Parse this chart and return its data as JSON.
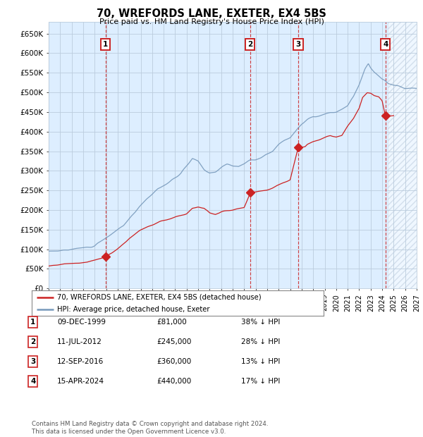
{
  "title": "70, WREFORDS LANE, EXETER, EX4 5BS",
  "subtitle": "Price paid vs. HM Land Registry's House Price Index (HPI)",
  "ylim": [
    0,
    680000
  ],
  "xlim_start": 1995.0,
  "xlim_end": 2027.0,
  "yticks": [
    0,
    50000,
    100000,
    150000,
    200000,
    250000,
    300000,
    350000,
    400000,
    450000,
    500000,
    550000,
    600000,
    650000
  ],
  "ytick_labels": [
    "£0",
    "£50K",
    "£100K",
    "£150K",
    "£200K",
    "£250K",
    "£300K",
    "£350K",
    "£400K",
    "£450K",
    "£500K",
    "£550K",
    "£600K",
    "£650K"
  ],
  "hpi_color": "#7799bb",
  "price_color": "#cc2222",
  "plot_bg_color": "#ddeeff",
  "grid_color": "#bbccdd",
  "sale_dates": [
    1999.94,
    2012.53,
    2016.7,
    2024.29
  ],
  "sale_prices": [
    81000,
    245000,
    360000,
    440000
  ],
  "sale_labels": [
    "1",
    "2",
    "3",
    "4"
  ],
  "sale_info": [
    {
      "num": "1",
      "date": "09-DEC-1999",
      "price": "£81,000",
      "pct": "38% ↓ HPI"
    },
    {
      "num": "2",
      "date": "11-JUL-2012",
      "price": "£245,000",
      "pct": "28% ↓ HPI"
    },
    {
      "num": "3",
      "date": "12-SEP-2016",
      "price": "£360,000",
      "pct": "13% ↓ HPI"
    },
    {
      "num": "4",
      "date": "15-APR-2024",
      "price": "£440,000",
      "pct": "17% ↓ HPI"
    }
  ],
  "legend_entries": [
    "70, WREFORDS LANE, EXETER, EX4 5BS (detached house)",
    "HPI: Average price, detached house, Exeter"
  ],
  "footer": "Contains HM Land Registry data © Crown copyright and database right 2024.\nThis data is licensed under the Open Government Licence v3.0.",
  "hatch_region_start": 2024.5,
  "hatch_region_end": 2027.0,
  "hpi_anchors": [
    [
      1995.0,
      95000
    ],
    [
      1996.0,
      97000
    ],
    [
      1997.0,
      99000
    ],
    [
      1998.0,
      103000
    ],
    [
      1999.0,
      110000
    ],
    [
      1999.94,
      128000
    ],
    [
      2000.5,
      140000
    ],
    [
      2001.5,
      160000
    ],
    [
      2002.5,
      195000
    ],
    [
      2003.5,
      228000
    ],
    [
      2004.5,
      255000
    ],
    [
      2005.5,
      272000
    ],
    [
      2006.5,
      295000
    ],
    [
      2007.5,
      332000
    ],
    [
      2008.0,
      325000
    ],
    [
      2008.5,
      305000
    ],
    [
      2009.0,
      295000
    ],
    [
      2009.5,
      298000
    ],
    [
      2010.0,
      308000
    ],
    [
      2010.5,
      315000
    ],
    [
      2011.0,
      312000
    ],
    [
      2011.5,
      310000
    ],
    [
      2012.0,
      318000
    ],
    [
      2012.53,
      328000
    ],
    [
      2013.0,
      330000
    ],
    [
      2013.5,
      335000
    ],
    [
      2014.0,
      342000
    ],
    [
      2014.5,
      352000
    ],
    [
      2015.0,
      368000
    ],
    [
      2015.5,
      378000
    ],
    [
      2016.0,
      385000
    ],
    [
      2016.7,
      410000
    ],
    [
      2017.0,
      420000
    ],
    [
      2017.5,
      430000
    ],
    [
      2018.0,
      438000
    ],
    [
      2018.5,
      440000
    ],
    [
      2019.0,
      445000
    ],
    [
      2019.5,
      448000
    ],
    [
      2020.0,
      448000
    ],
    [
      2020.5,
      455000
    ],
    [
      2021.0,
      465000
    ],
    [
      2021.5,
      488000
    ],
    [
      2022.0,
      520000
    ],
    [
      2022.5,
      558000
    ],
    [
      2022.8,
      575000
    ],
    [
      2023.0,
      565000
    ],
    [
      2023.3,
      553000
    ],
    [
      2023.5,
      548000
    ],
    [
      2023.8,
      542000
    ],
    [
      2024.0,
      535000
    ],
    [
      2024.29,
      528000
    ],
    [
      2024.5,
      522000
    ],
    [
      2025.0,
      518000
    ],
    [
      2026.0,
      512000
    ],
    [
      2027.0,
      510000
    ]
  ],
  "price_anchors": [
    [
      1995.0,
      58000
    ],
    [
      1996.0,
      60000
    ],
    [
      1997.0,
      63000
    ],
    [
      1998.0,
      66000
    ],
    [
      1999.0,
      72000
    ],
    [
      1999.94,
      81000
    ],
    [
      2000.5,
      90000
    ],
    [
      2001.0,
      102000
    ],
    [
      2002.0,
      128000
    ],
    [
      2003.0,
      148000
    ],
    [
      2004.0,
      162000
    ],
    [
      2005.0,
      172000
    ],
    [
      2006.0,
      182000
    ],
    [
      2007.0,
      192000
    ],
    [
      2007.5,
      205000
    ],
    [
      2008.0,
      208000
    ],
    [
      2008.5,
      205000
    ],
    [
      2009.0,
      192000
    ],
    [
      2009.5,
      188000
    ],
    [
      2010.0,
      195000
    ],
    [
      2010.5,
      198000
    ],
    [
      2011.0,
      200000
    ],
    [
      2011.5,
      204000
    ],
    [
      2012.0,
      208000
    ],
    [
      2012.53,
      245000
    ],
    [
      2013.0,
      245000
    ],
    [
      2013.5,
      248000
    ],
    [
      2014.0,
      252000
    ],
    [
      2014.5,
      258000
    ],
    [
      2015.0,
      265000
    ],
    [
      2015.5,
      272000
    ],
    [
      2016.0,
      278000
    ],
    [
      2016.7,
      360000
    ],
    [
      2017.0,
      360000
    ],
    [
      2017.3,
      362000
    ],
    [
      2017.5,
      368000
    ],
    [
      2018.0,
      375000
    ],
    [
      2018.5,
      380000
    ],
    [
      2019.0,
      385000
    ],
    [
      2019.5,
      390000
    ],
    [
      2020.0,
      385000
    ],
    [
      2020.5,
      390000
    ],
    [
      2021.0,
      415000
    ],
    [
      2021.5,
      435000
    ],
    [
      2022.0,
      460000
    ],
    [
      2022.3,
      488000
    ],
    [
      2022.7,
      500000
    ],
    [
      2023.0,
      498000
    ],
    [
      2023.3,
      492000
    ],
    [
      2023.7,
      488000
    ],
    [
      2024.0,
      478000
    ],
    [
      2024.29,
      440000
    ],
    [
      2024.5,
      440000
    ],
    [
      2025.0,
      440000
    ]
  ]
}
